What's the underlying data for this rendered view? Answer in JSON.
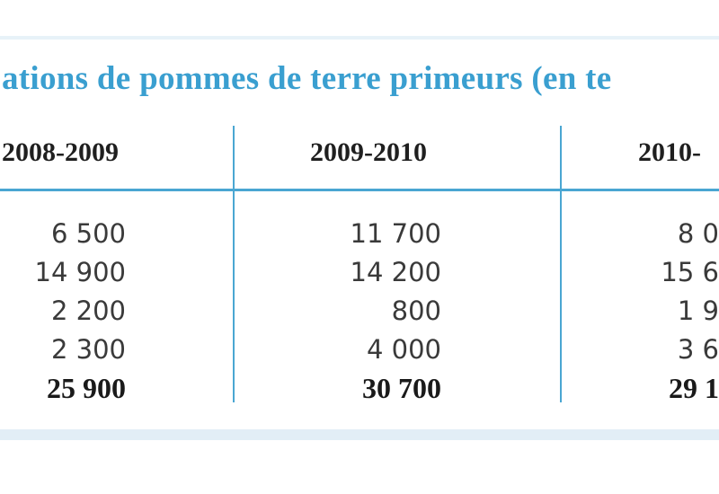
{
  "colors": {
    "title": "#3a9fd0",
    "rule": "#4aa6d2"
  },
  "table": {
    "title": "ations de pommes de terre primeurs (en te",
    "columns": [
      "2008-2009",
      "2009-2010",
      "2010-"
    ],
    "rows": [
      [
        "6 500",
        "11 700",
        "8 0"
      ],
      [
        "14 900",
        "14 200",
        "15 6"
      ],
      [
        "2 200",
        "800",
        "1 9"
      ],
      [
        "2 300",
        "4 000",
        "3 6"
      ]
    ],
    "totals": [
      "25 900",
      "30 700",
      "29 1"
    ]
  }
}
